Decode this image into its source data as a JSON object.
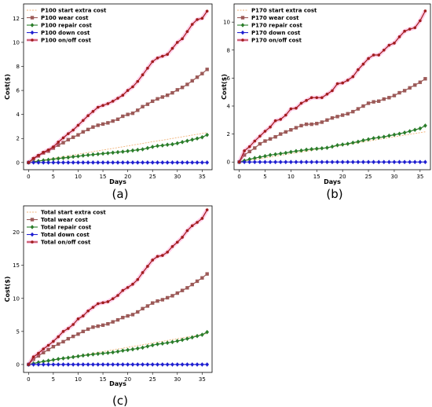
{
  "chart_data": [
    {
      "type": "line",
      "caption": "(a)",
      "xlabel": "Days",
      "ylabel": "Cost($)",
      "xlim": [
        -1,
        37
      ],
      "ylim": [
        -0.6,
        13.2
      ],
      "xticks": [
        0,
        5,
        10,
        15,
        20,
        25,
        30,
        35
      ],
      "yticks": [
        0,
        2,
        4,
        6,
        8,
        10,
        12
      ],
      "legend_position": "top-left",
      "grid": false,
      "x": [
        0,
        1,
        2,
        3,
        4,
        5,
        6,
        7,
        8,
        9,
        10,
        11,
        12,
        13,
        14,
        15,
        16,
        17,
        18,
        19,
        20,
        21,
        22,
        23,
        24,
        25,
        26,
        27,
        28,
        29,
        30,
        31,
        32,
        33,
        34,
        35,
        36
      ],
      "series": [
        {
          "name": "P100 start extra cost",
          "color": "#f2b47a",
          "marker": "none",
          "dashed": true,
          "values": [
            0,
            0.07,
            0.14,
            0.21,
            0.28,
            0.35,
            0.42,
            0.48,
            0.55,
            0.62,
            0.69,
            0.76,
            0.83,
            0.9,
            0.97,
            1.04,
            1.11,
            1.17,
            1.24,
            1.31,
            1.38,
            1.45,
            1.52,
            1.59,
            1.66,
            1.73,
            1.8,
            1.86,
            1.93,
            2.0,
            2.07,
            2.14,
            2.21,
            2.28,
            2.35,
            2.42,
            2.48
          ]
        },
        {
          "name": "P100 wear cost",
          "color": "#9c5a58",
          "marker": "square",
          "values": [
            0,
            0.3,
            0.55,
            0.8,
            0.95,
            1.2,
            1.45,
            1.65,
            1.9,
            2.1,
            2.3,
            2.55,
            2.75,
            2.95,
            3.1,
            3.2,
            3.3,
            3.45,
            3.6,
            3.85,
            4.0,
            4.1,
            4.35,
            4.65,
            4.85,
            5.1,
            5.3,
            5.45,
            5.6,
            5.8,
            6.05,
            6.25,
            6.5,
            6.8,
            7.1,
            7.4,
            7.75
          ]
        },
        {
          "name": "P100 repair cost",
          "color": "#2a7d2a",
          "marker": "diamond",
          "values": [
            0,
            0.05,
            0.12,
            0.18,
            0.22,
            0.28,
            0.33,
            0.38,
            0.42,
            0.48,
            0.52,
            0.58,
            0.62,
            0.66,
            0.7,
            0.74,
            0.78,
            0.82,
            0.86,
            0.9,
            0.95,
            1.0,
            1.05,
            1.1,
            1.2,
            1.3,
            1.38,
            1.42,
            1.48,
            1.52,
            1.6,
            1.7,
            1.8,
            1.9,
            2.0,
            2.1,
            2.3
          ]
        },
        {
          "name": "P100 down cost",
          "color": "#1f1fd1",
          "marker": "diamond",
          "values": [
            0,
            0,
            0,
            0,
            0,
            0,
            0,
            0,
            0,
            0,
            0,
            0,
            0,
            0,
            0,
            0,
            0,
            0,
            0,
            0,
            0,
            0,
            0,
            0,
            0,
            0,
            0,
            0,
            0,
            0,
            0,
            0,
            0,
            0,
            0,
            0,
            0
          ]
        },
        {
          "name": "P100 on/off cost",
          "color": "#a01c1c",
          "marker": "circle",
          "glow": "#ff3fa8",
          "values": [
            0,
            0.35,
            0.6,
            0.85,
            1.05,
            1.3,
            1.7,
            2.05,
            2.4,
            2.7,
            3.1,
            3.5,
            3.9,
            4.25,
            4.6,
            4.75,
            4.9,
            5.1,
            5.35,
            5.6,
            6.0,
            6.3,
            6.75,
            7.3,
            7.85,
            8.4,
            8.7,
            8.85,
            9.0,
            9.5,
            10.0,
            10.3,
            10.9,
            11.5,
            11.9,
            12.0,
            12.6
          ]
        }
      ]
    },
    {
      "type": "line",
      "caption": "(b)",
      "xlabel": "Days",
      "ylabel": "Cost($)",
      "xlim": [
        -1,
        37
      ],
      "ylim": [
        -0.55,
        11.3
      ],
      "xticks": [
        0,
        5,
        10,
        15,
        20,
        25,
        30,
        35
      ],
      "yticks": [
        0,
        2,
        4,
        6,
        8,
        10
      ],
      "legend_position": "top-left",
      "grid": false,
      "x": [
        0,
        1,
        2,
        3,
        4,
        5,
        6,
        7,
        8,
        9,
        10,
        11,
        12,
        13,
        14,
        15,
        16,
        17,
        18,
        19,
        20,
        21,
        22,
        23,
        24,
        25,
        26,
        27,
        28,
        29,
        30,
        31,
        32,
        33,
        34,
        35,
        36
      ],
      "series": [
        {
          "name": "P170 start extra cost",
          "color": "#f2b47a",
          "marker": "none",
          "dashed": true,
          "values": [
            0,
            0.06,
            0.12,
            0.18,
            0.24,
            0.3,
            0.36,
            0.42,
            0.48,
            0.54,
            0.6,
            0.66,
            0.72,
            0.78,
            0.84,
            0.9,
            0.96,
            1.02,
            1.08,
            1.14,
            1.2,
            1.26,
            1.32,
            1.38,
            1.44,
            1.5,
            1.56,
            1.62,
            1.68,
            1.74,
            1.8,
            1.86,
            1.92,
            1.98,
            2.04,
            2.1,
            2.16
          ]
        },
        {
          "name": "P170 wear cost",
          "color": "#9c5a58",
          "marker": "square",
          "values": [
            0,
            0.5,
            0.75,
            1.0,
            1.3,
            1.5,
            1.65,
            1.8,
            2.0,
            2.15,
            2.3,
            2.45,
            2.6,
            2.7,
            2.7,
            2.75,
            2.85,
            3.0,
            3.15,
            3.25,
            3.35,
            3.45,
            3.6,
            3.8,
            4.0,
            4.2,
            4.3,
            4.35,
            4.5,
            4.6,
            4.75,
            4.95,
            5.1,
            5.3,
            5.5,
            5.7,
            5.95
          ]
        },
        {
          "name": "P170 repair cost",
          "color": "#2a7d2a",
          "marker": "diamond",
          "values": [
            0,
            0.1,
            0.2,
            0.28,
            0.35,
            0.42,
            0.5,
            0.55,
            0.6,
            0.65,
            0.72,
            0.78,
            0.82,
            0.88,
            0.92,
            0.95,
            0.98,
            1.02,
            1.1,
            1.2,
            1.25,
            1.3,
            1.38,
            1.45,
            1.55,
            1.62,
            1.7,
            1.75,
            1.8,
            1.88,
            1.95,
            2.02,
            2.1,
            2.2,
            2.3,
            2.4,
            2.6
          ]
        },
        {
          "name": "P170 down cost",
          "color": "#1f1fd1",
          "marker": "diamond",
          "values": [
            0,
            0,
            0,
            0,
            0,
            0,
            0,
            0,
            0,
            0,
            0,
            0,
            0,
            0,
            0,
            0,
            0,
            0,
            0,
            0,
            0,
            0,
            0,
            0,
            0,
            0,
            0,
            0,
            0,
            0,
            0,
            0,
            0,
            0,
            0,
            0,
            0
          ]
        },
        {
          "name": "P170 on/off cost",
          "color": "#a01c1c",
          "marker": "circle",
          "glow": "#ff3fa8",
          "values": [
            0,
            0.8,
            1.1,
            1.5,
            1.85,
            2.2,
            2.5,
            2.95,
            3.05,
            3.35,
            3.8,
            3.85,
            4.2,
            4.4,
            4.6,
            4.6,
            4.6,
            4.85,
            5.1,
            5.6,
            5.65,
            5.85,
            6.1,
            6.6,
            7.0,
            7.4,
            7.65,
            7.65,
            8.0,
            8.35,
            8.5,
            8.95,
            9.35,
            9.5,
            9.6,
            10.1,
            10.8
          ]
        }
      ]
    },
    {
      "type": "line",
      "caption": "(c)",
      "xlabel": "Days",
      "ylabel": "Cost($)",
      "xlim": [
        -1,
        37
      ],
      "ylim": [
        -1.2,
        24.0
      ],
      "xticks": [
        0,
        5,
        10,
        15,
        20,
        25,
        30,
        35
      ],
      "yticks": [
        0,
        5,
        10,
        15,
        20
      ],
      "legend_position": "top-left",
      "grid": false,
      "x": [
        0,
        1,
        2,
        3,
        4,
        5,
        6,
        7,
        8,
        9,
        10,
        11,
        12,
        13,
        14,
        15,
        16,
        17,
        18,
        19,
        20,
        21,
        22,
        23,
        24,
        25,
        26,
        27,
        28,
        29,
        30,
        31,
        32,
        33,
        34,
        35,
        36
      ],
      "series": [
        {
          "name": "Total start extra cost",
          "color": "#f2b47a",
          "marker": "none",
          "dashed": true,
          "values": [
            0,
            0.13,
            0.26,
            0.39,
            0.52,
            0.65,
            0.78,
            0.91,
            1.04,
            1.17,
            1.3,
            1.43,
            1.56,
            1.69,
            1.82,
            1.95,
            2.08,
            2.21,
            2.34,
            2.47,
            2.6,
            2.73,
            2.86,
            2.99,
            3.12,
            3.25,
            3.38,
            3.51,
            3.64,
            3.77,
            3.9,
            4.03,
            4.16,
            4.29,
            4.42,
            4.55,
            4.68
          ]
        },
        {
          "name": "Total wear cost",
          "color": "#9c5a58",
          "marker": "square",
          "values": [
            0,
            0.8,
            1.3,
            1.8,
            2.25,
            2.7,
            3.1,
            3.45,
            3.9,
            4.25,
            4.6,
            5.0,
            5.35,
            5.65,
            5.8,
            5.95,
            6.15,
            6.45,
            6.75,
            7.1,
            7.35,
            7.55,
            7.95,
            8.45,
            8.85,
            9.3,
            9.6,
            9.8,
            10.1,
            10.4,
            10.8,
            11.2,
            11.6,
            12.1,
            12.6,
            13.1,
            13.7
          ]
        },
        {
          "name": "Total repair cost",
          "color": "#2a7d2a",
          "marker": "diamond",
          "values": [
            0,
            0.15,
            0.32,
            0.46,
            0.57,
            0.7,
            0.83,
            0.93,
            1.02,
            1.13,
            1.24,
            1.36,
            1.44,
            1.54,
            1.62,
            1.69,
            1.76,
            1.84,
            1.96,
            2.1,
            2.2,
            2.3,
            2.43,
            2.55,
            2.75,
            2.92,
            3.08,
            3.17,
            3.28,
            3.4,
            3.55,
            3.72,
            3.9,
            4.1,
            4.3,
            4.5,
            4.9
          ]
        },
        {
          "name": "Total down cost",
          "color": "#1f1fd1",
          "marker": "diamond",
          "values": [
            0,
            0,
            0,
            0,
            0,
            0,
            0,
            0,
            0,
            0,
            0,
            0,
            0,
            0,
            0,
            0,
            0,
            0,
            0,
            0,
            0,
            0,
            0,
            0,
            0,
            0,
            0,
            0,
            0,
            0,
            0,
            0,
            0,
            0,
            0,
            0,
            0
          ]
        },
        {
          "name": "Total on/off cost",
          "color": "#a01c1c",
          "marker": "circle",
          "glow": "#ff3fa8",
          "values": [
            0,
            1.15,
            1.7,
            2.35,
            2.9,
            3.5,
            4.2,
            5.0,
            5.45,
            6.05,
            6.9,
            7.35,
            8.1,
            8.65,
            9.2,
            9.35,
            9.5,
            9.95,
            10.45,
            11.2,
            11.65,
            12.15,
            12.85,
            13.9,
            14.85,
            15.8,
            16.35,
            16.5,
            17.0,
            17.85,
            18.5,
            19.25,
            20.25,
            21.0,
            21.5,
            22.1,
            23.4
          ]
        }
      ]
    }
  ]
}
